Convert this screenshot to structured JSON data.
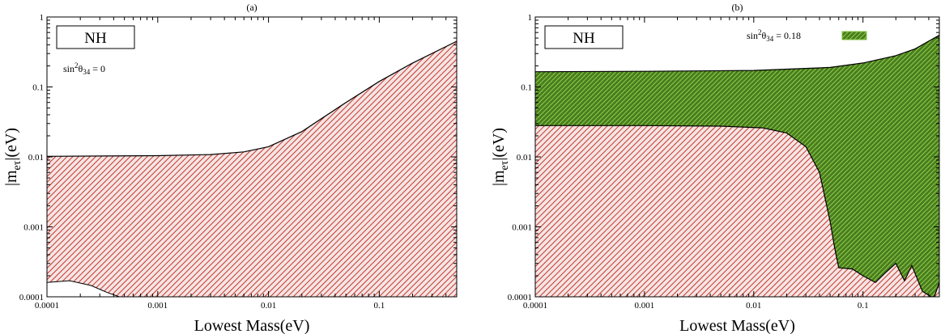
{
  "chart_data": [
    {
      "type": "area",
      "panel_label": "(a)",
      "box_label": "NH",
      "annotation": {
        "base": "sin",
        "sup": "2",
        "theta": "θ",
        "sub": "34",
        "rest": " = 0"
      },
      "xlabel": "Lowest Mass(eV)",
      "ylabel": {
        "base": "|m",
        "sub": "eτ",
        "rest": "|(eV)"
      },
      "xscale": "log",
      "yscale": "log",
      "xlim": [
        0.0001,
        0.5
      ],
      "ylim": [
        0.0001,
        1
      ],
      "xticks": [
        0.0001,
        0.001,
        0.01,
        0.1
      ],
      "xtick_labels": [
        "0.0001",
        "0.001",
        "0.01",
        "0.1"
      ],
      "yticks": [
        0.0001,
        0.001,
        0.01,
        0.1,
        1
      ],
      "ytick_labels": [
        "0.0001",
        "0.001",
        "0.01",
        "0.1",
        "1"
      ],
      "grid": false,
      "series": [
        {
          "color": "#c0392b",
          "upper": [
            [
              0.0001,
              0.0102
            ],
            [
              0.001,
              0.0104
            ],
            [
              0.003,
              0.0108
            ],
            [
              0.006,
              0.0118
            ],
            [
              0.01,
              0.014
            ],
            [
              0.02,
              0.023
            ],
            [
              0.05,
              0.06
            ],
            [
              0.1,
              0.12
            ],
            [
              0.2,
              0.22
            ],
            [
              0.5,
              0.45
            ]
          ],
          "lower": [
            [
              0.0001,
              0.00016
            ],
            [
              0.00016,
              0.00017
            ],
            [
              0.00025,
              0.000145
            ],
            [
              0.00035,
              0.000115
            ],
            [
              0.00045,
              0.0001
            ],
            [
              0.5,
              0.0001
            ]
          ]
        }
      ]
    },
    {
      "type": "area",
      "panel_label": "(b)",
      "box_label": "NH",
      "annotation": {
        "base": "sin",
        "sup": "2",
        "theta": "θ",
        "sub": "34",
        "rest": " = 0.18"
      },
      "legend_color": "#7fc241",
      "legend_position": "top-right",
      "xlabel": "Lowest Mass(eV)",
      "ylabel": {
        "base": "|m",
        "sub": "eτ",
        "rest": "|(eV)"
      },
      "xscale": "log",
      "yscale": "log",
      "xlim": [
        0.0001,
        0.5
      ],
      "ylim": [
        0.0001,
        1
      ],
      "xticks": [
        0.0001,
        0.001,
        0.01,
        0.1
      ],
      "xtick_labels": [
        "0.0001",
        "0.001",
        "0.01",
        "0.1"
      ],
      "yticks": [
        0.0001,
        0.001,
        0.01,
        0.1,
        1
      ],
      "ytick_labels": [
        "0.0001",
        "0.001",
        "0.01",
        "0.1",
        "1"
      ],
      "grid": false,
      "series": [
        {
          "color": "#5a8a1f",
          "fill": "#7fc241",
          "upper": [
            [
              0.0001,
              0.165
            ],
            [
              0.001,
              0.167
            ],
            [
              0.01,
              0.172
            ],
            [
              0.05,
              0.19
            ],
            [
              0.1,
              0.22
            ],
            [
              0.2,
              0.28
            ],
            [
              0.3,
              0.35
            ],
            [
              0.5,
              0.55
            ]
          ],
          "lower": [
            [
              0.0001,
              0.0001
            ],
            [
              0.5,
              0.0001
            ]
          ]
        },
        {
          "color": "#c0392b",
          "upper": [
            [
              0.0001,
              0.028
            ],
            [
              0.001,
              0.028
            ],
            [
              0.005,
              0.0275
            ],
            [
              0.012,
              0.026
            ],
            [
              0.02,
              0.022
            ],
            [
              0.03,
              0.014
            ],
            [
              0.04,
              0.006
            ],
            [
              0.05,
              0.0012
            ],
            [
              0.055,
              0.0005
            ],
            [
              0.06,
              0.00026
            ],
            [
              0.08,
              0.00025
            ],
            [
              0.1,
              0.0002
            ],
            [
              0.13,
              0.00016
            ],
            [
              0.16,
              0.00022
            ],
            [
              0.2,
              0.0003
            ],
            [
              0.24,
              0.00017
            ],
            [
              0.28,
              0.00028
            ],
            [
              0.35,
              0.00012
            ],
            [
              0.42,
              0.0001
            ],
            [
              0.45,
              0.0001
            ],
            [
              0.5,
              0.00016
            ]
          ],
          "lower": [
            [
              0.0001,
              0.0001
            ],
            [
              0.5,
              0.0001
            ]
          ]
        }
      ]
    }
  ]
}
